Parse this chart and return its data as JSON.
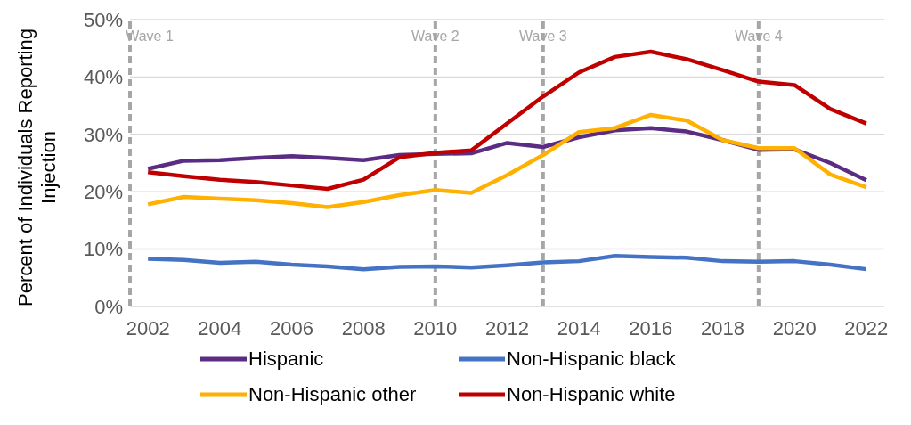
{
  "chart_data": {
    "type": "line",
    "ylabel": "Percent of Individuals Reporting Injection",
    "x": [
      2002,
      2003,
      2004,
      2005,
      2006,
      2007,
      2008,
      2009,
      2010,
      2011,
      2012,
      2013,
      2014,
      2015,
      2016,
      2017,
      2018,
      2019,
      2020,
      2021,
      2022
    ],
    "xlim": [
      2001.5,
      2022.5
    ],
    "xticks": [
      2002,
      2004,
      2006,
      2008,
      2010,
      2012,
      2014,
      2016,
      2018,
      2020,
      2022
    ],
    "ylim": [
      0,
      50
    ],
    "yticks": [
      {
        "value": 0,
        "label": "0%"
      },
      {
        "value": 10,
        "label": "10%"
      },
      {
        "value": 20,
        "label": "20%"
      },
      {
        "value": 30,
        "label": "30%"
      },
      {
        "value": 40,
        "label": "40%"
      },
      {
        "value": 50,
        "label": "50%"
      }
    ],
    "grid": "y",
    "legend": "bottom",
    "marker": "none",
    "line_style": "solid",
    "ref_lines": [
      {
        "axis": "x",
        "value": 2001.5,
        "label": "Wave 1",
        "color": "#a6a6a6",
        "line_style": "dashed"
      },
      {
        "axis": "x",
        "value": 2010,
        "label": "Wave 2",
        "color": "#a6a6a6",
        "line_style": "dashed"
      },
      {
        "axis": "x",
        "value": 2013,
        "label": "Wave 3",
        "color": "#a6a6a6",
        "line_style": "dashed"
      },
      {
        "axis": "x",
        "value": 2019,
        "label": "Wave 4",
        "color": "#a6a6a6",
        "line_style": "dashed"
      }
    ],
    "series": [
      {
        "name": "Hispanic",
        "color": "#5b2c83",
        "values": [
          24,
          25.4,
          25.5,
          25.9,
          26.2,
          25.9,
          25.5,
          26.4,
          26.6,
          26.7,
          28.5,
          27.8,
          29.5,
          30.7,
          31.1,
          30.5,
          29,
          27.3,
          27.4,
          25,
          22
        ]
      },
      {
        "name": "Non-Hispanic black",
        "color": "#4472c4",
        "values": [
          8.3,
          8.1,
          7.6,
          7.8,
          7.3,
          7,
          6.5,
          6.9,
          7,
          6.8,
          7.2,
          7.7,
          7.9,
          8.8,
          8.6,
          8.5,
          7.9,
          7.8,
          7.9,
          7.3,
          6.5
        ]
      },
      {
        "name": "Non-Hispanic other",
        "color": "#ffb000",
        "values": [
          17.8,
          19.1,
          18.8,
          18.5,
          18,
          17.3,
          18.2,
          19.4,
          20.3,
          19.8,
          22.9,
          26.4,
          30.4,
          31.1,
          33.4,
          32.4,
          29,
          27.6,
          27.6,
          23,
          20.8
        ]
      },
      {
        "name": "Non-Hispanic white",
        "color": "#c00000",
        "values": [
          23.4,
          22.7,
          22.1,
          21.7,
          21.1,
          20.5,
          22.1,
          26,
          26.8,
          27.2,
          31.9,
          36.6,
          40.8,
          43.5,
          44.4,
          43.1,
          41.2,
          39.2,
          38.6,
          34.4,
          31.9
        ]
      }
    ]
  }
}
